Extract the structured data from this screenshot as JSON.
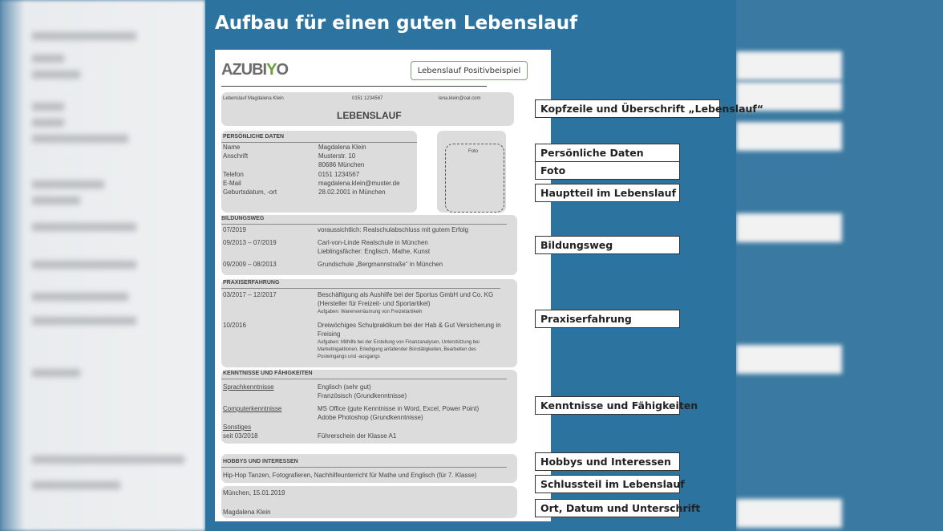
{
  "title": "Aufbau für einen guten Lebenslauf",
  "doc": {
    "logo": "AZUBIYO",
    "badge": "Lebenslauf Positivbeispiel",
    "header": {
      "name": "Lebenslauf Magdalena Klein",
      "phone": "0151 1234567",
      "email": "lena.klein@oal.com",
      "heading": "LEBENSLAUF"
    },
    "personal": {
      "heading": "PERSÖNLICHE DATEN",
      "rows": [
        {
          "k": "Name",
          "v": "Magdalena Klein"
        },
        {
          "k": "Anschrift",
          "v": "Musterstr. 10"
        },
        {
          "k": "",
          "v": "80686 München"
        },
        {
          "k": "Telefon",
          "v": "0151 1234567"
        },
        {
          "k": "E-Mail",
          "v": "magdalena.klein@muster.de"
        },
        {
          "k": "Geburtsdatum, -ort",
          "v": "28.02.2001 in München"
        }
      ],
      "foto": "Foto"
    },
    "bildung": {
      "heading": "BILDUNGSWEG",
      "rows": [
        {
          "d": "07/2019",
          "v": "voraussichtlich: Realschulabschluss mit gutem Erfolg"
        },
        {
          "d": "09/2013 – 07/2019",
          "v": "Carl-von-Linde Realschule in München",
          "v2": "Lieblingsfächer: Englisch, Mathe, Kunst"
        },
        {
          "d": "09/2009 – 08/2013",
          "v": "Grundschule „Bergmannstraße“ in München"
        }
      ]
    },
    "praxis": {
      "heading": "PRAXISERFAHRUNG",
      "rows": [
        {
          "d": "03/2017 – 12/2017",
          "v": "Beschäftigung als Aushilfe bei der Sportus GmbH und Co. KG",
          "v2": "(Hersteller für Freizeit- und Sportartikel)",
          "a": [
            "Aufgaben: Warenverräumung von Freizeitartikeln"
          ]
        },
        {
          "d": "10/2016",
          "v": "Dreiwöchiges Schulpraktikum bei der Hab & Gut Versicherung in",
          "v2": "Freising",
          "a": [
            "Aufgaben: Mithilfe bei der Erstellung von Finanzanalysen, Unterstützung bei",
            "Marketingaktionen, Erledigung anfallender Bürotätigkeiten, Bearbeiten des",
            "Posteingangs und -ausgangs"
          ]
        }
      ]
    },
    "kenntnisse": {
      "heading": "KENNTNISSE UND FÄHIGKEITEN",
      "rows": [
        {
          "d": "Sprachkenntnisse",
          "v": "Englisch (sehr gut)",
          "v2": "Französisch (Grundkenntnisse)"
        },
        {
          "d": "Computerkenntnisse",
          "v": "MS Office (gute Kenntnisse in Word, Excel, Power Point)",
          "v2": "Adobe Photoshop (Grundkenntnisse)"
        },
        {
          "d": "Sonstiges",
          "d2": "seit 03/2018",
          "v": "Führerschein der Klasse A1"
        }
      ]
    },
    "hobbys": {
      "heading": "HOBBYS UND INTERESSEN",
      "text": "Hip-Hop Tanzen, Fotografieren, Nachhilfeunterricht für Mathe und Englisch (für 7. Klasse)"
    },
    "schluss": {
      "place_date": "München, 15.01.2019",
      "signature": "Magdalena Klein"
    }
  },
  "labels": [
    "Kopfzeile und Überschrift „Lebenslauf“",
    "Persönliche Daten",
    "Foto",
    "Hauptteil im Lebenslauf",
    "Bildungsweg",
    "Praxiserfahrung",
    "Kenntnisse und Fähigkeiten",
    "Hobbys und Interessen",
    "Schlussteil im Lebenslauf",
    "Ort, Datum und Unterschrift"
  ],
  "colors": {
    "panel": "#2c73a0",
    "accent": "#6a9e3a"
  }
}
